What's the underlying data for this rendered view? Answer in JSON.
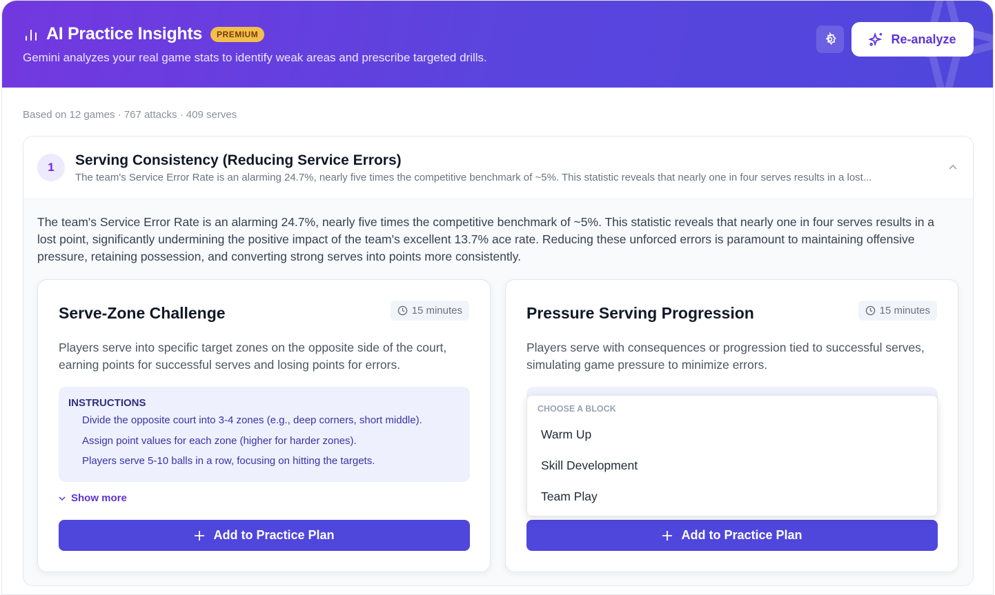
{
  "header": {
    "title": "AI Practice Insights",
    "badge": "PREMIUM",
    "subtitle": "Gemini analyzes your real game stats to identify weak areas and prescribe targeted drills.",
    "reanalyze_label": "Re-analyze",
    "colors": {
      "gradient_start": "#7338e0",
      "gradient_end": "#4f46dc",
      "badge": "#f2c04a"
    }
  },
  "meta": "Based on 12 games · 767 attacks · 409 serves",
  "insight": {
    "number": "1",
    "title": "Serving Consistency (Reducing Service Errors)",
    "summary": "The team's Service Error Rate is an alarming 24.7%, nearly five times the competitive benchmark of ~5%. This statistic reveals that nearly one in four serves results in a lost...",
    "description": "The team's Service Error Rate is an alarming 24.7%, nearly five times the competitive benchmark of ~5%. This statistic reveals that nearly one in four serves results in a lost point, significantly undermining the positive impact of the team's excellent 13.7% ace rate. Reducing these unforced errors is paramount to maintaining offensive pressure, retaining possession, and converting strong serves into points more consistently."
  },
  "drills": [
    {
      "title": "Serve-Zone Challenge",
      "duration": "15 minutes",
      "description": "Players serve into specific target zones on the opposite side of the court, earning points for successful serves and losing points for errors.",
      "instructions_label": "INSTRUCTIONS",
      "instructions": [
        "Divide the opposite court into 3-4 zones (e.g., deep corners, short middle).",
        "Assign point values for each zone (higher for harder zones).",
        "Players serve 5-10 balls in a row, focusing on hitting the targets."
      ],
      "show_more": "Show more",
      "add_label": "Add to Practice Plan"
    },
    {
      "title": "Pressure Serving Progression",
      "duration": "15 minutes",
      "description": "Players serve with consequences or progression tied to successful serves, simulating game pressure to minimize errors.",
      "menu": {
        "label": "CHOOSE A BLOCK",
        "options": [
          "Warm Up",
          "Skill Development",
          "Team Play"
        ]
      },
      "add_label": "Add to Practice Plan"
    }
  ]
}
